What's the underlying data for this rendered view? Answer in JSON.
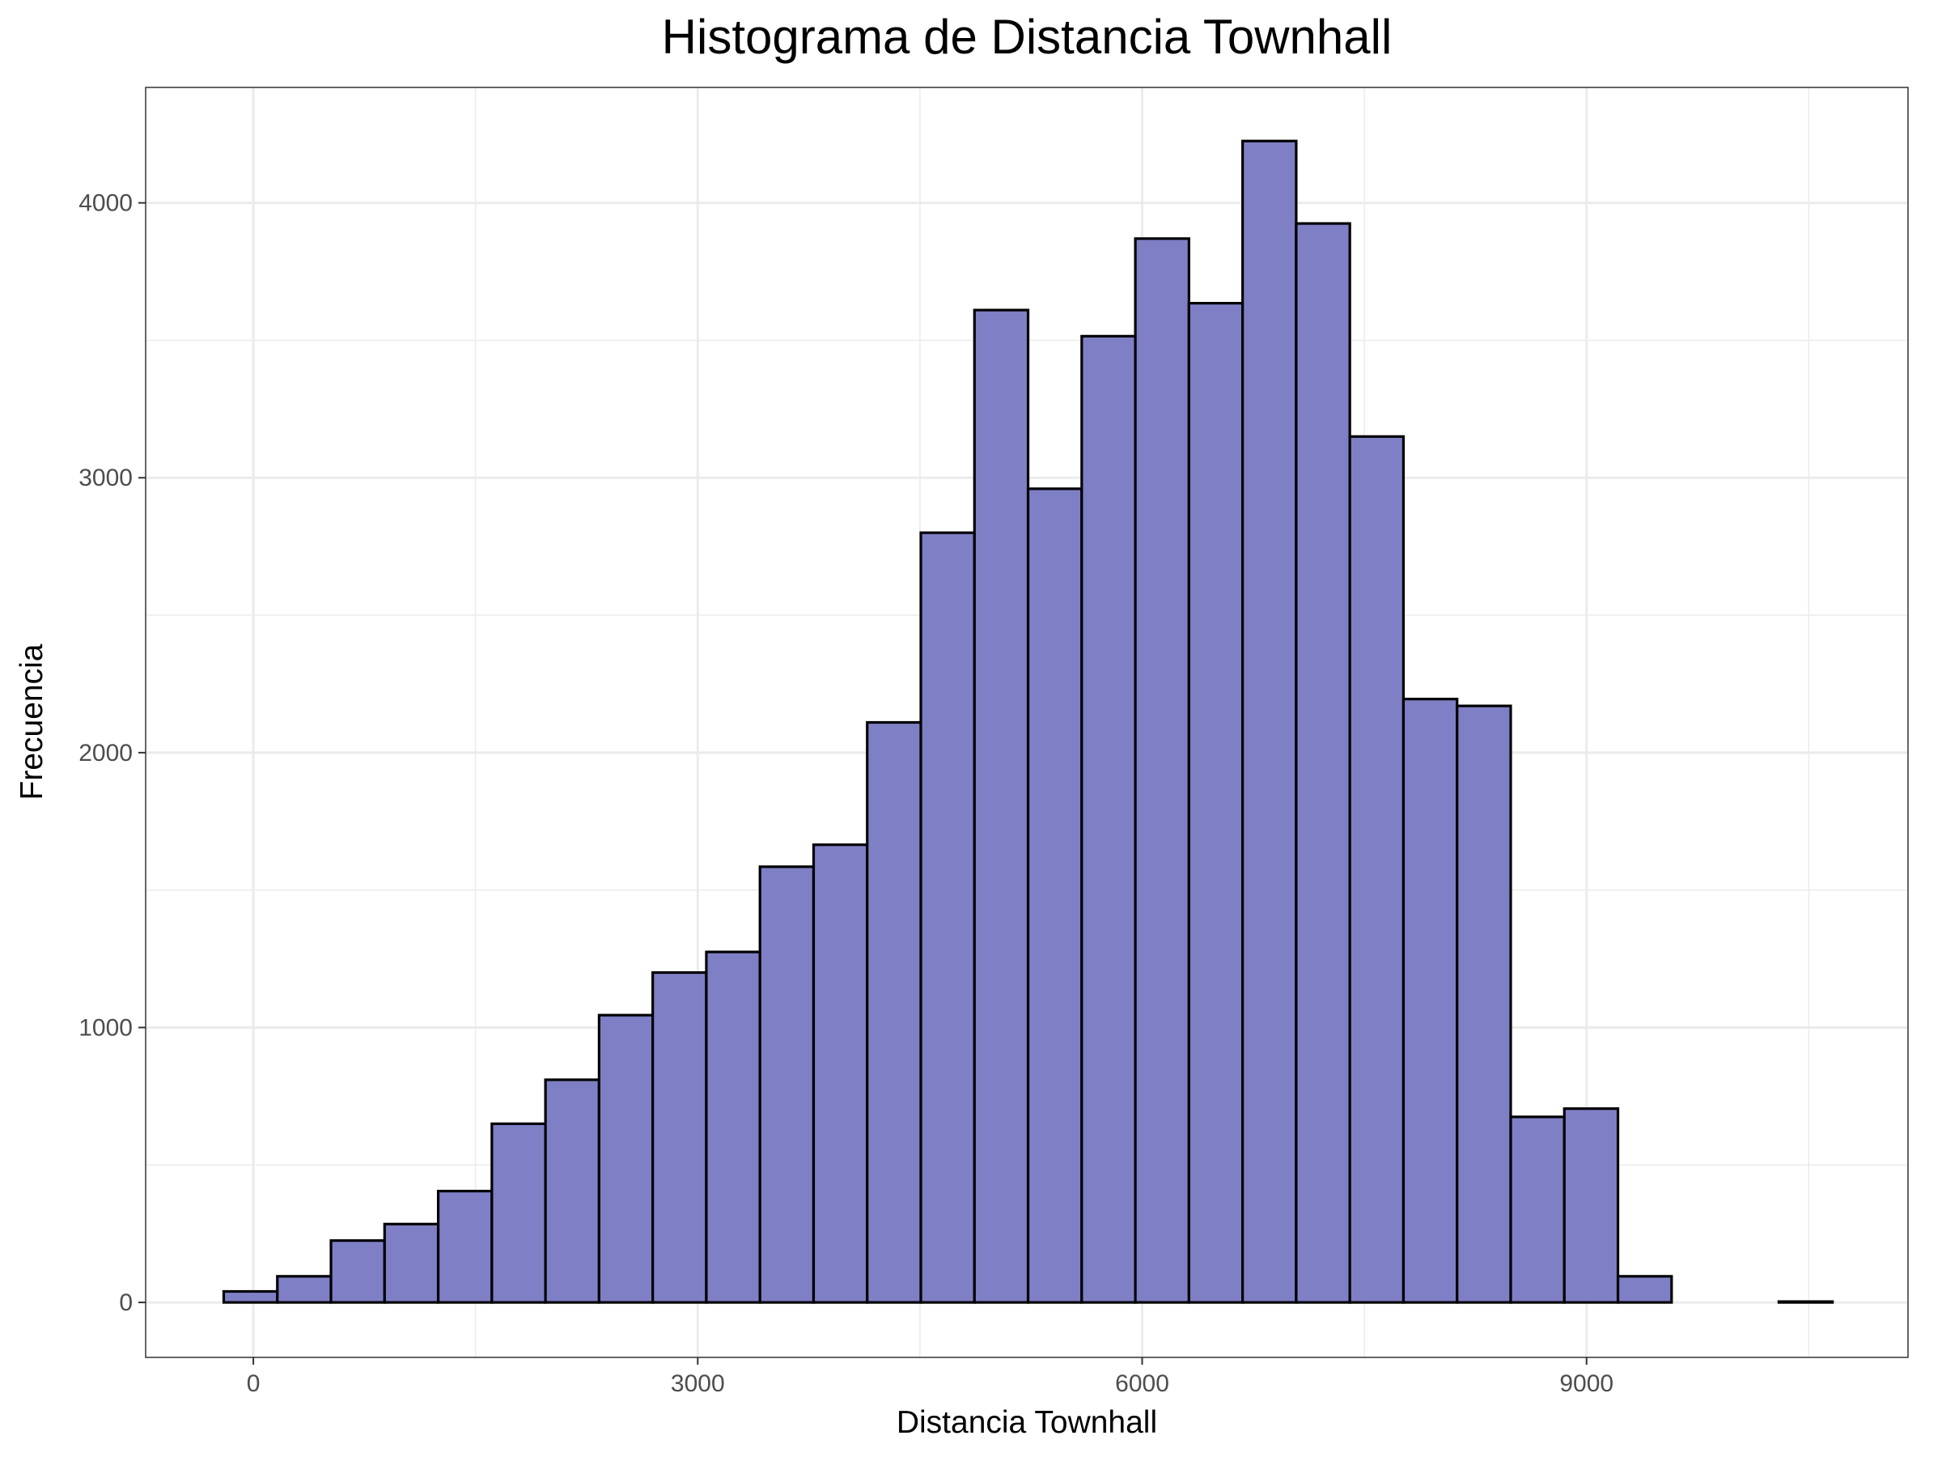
{
  "chart_data": {
    "type": "bar",
    "title": "Histograma de Distancia Townhall",
    "xlabel": "Distancia Townhall",
    "ylabel": "Frecuencia",
    "xlim": [
      -727,
      11170
    ],
    "ylim": [
      -200,
      4420
    ],
    "x_ticks": [
      {
        "value": 0,
        "label": "0"
      },
      {
        "value": 3000,
        "label": "3000"
      },
      {
        "value": 6000,
        "label": "6000"
      },
      {
        "value": 9000,
        "label": "9000"
      }
    ],
    "y_ticks": [
      {
        "value": 0,
        "label": "0"
      },
      {
        "value": 1000,
        "label": "1000"
      },
      {
        "value": 2000,
        "label": "2000"
      },
      {
        "value": 3000,
        "label": "3000"
      },
      {
        "value": 4000,
        "label": "4000"
      }
    ],
    "x_minor_breaks": [
      1500,
      4500,
      7500,
      10500
    ],
    "y_minor_breaks": [
      500,
      1500,
      2500,
      3500
    ],
    "bin_start": -200,
    "bin_width": 362,
    "values": [
      40,
      95,
      225,
      285,
      405,
      650,
      810,
      1045,
      1200,
      1275,
      1585,
      1665,
      2110,
      2800,
      3610,
      2960,
      3515,
      3870,
      3635,
      4225,
      3925,
      3150,
      2195,
      2170,
      675,
      705,
      95,
      0,
      0,
      3
    ],
    "grid": true,
    "legend": "none",
    "bar_fill": "#7f7fc6",
    "bar_stroke": "#000000",
    "grid_color": "#ebebeb"
  }
}
